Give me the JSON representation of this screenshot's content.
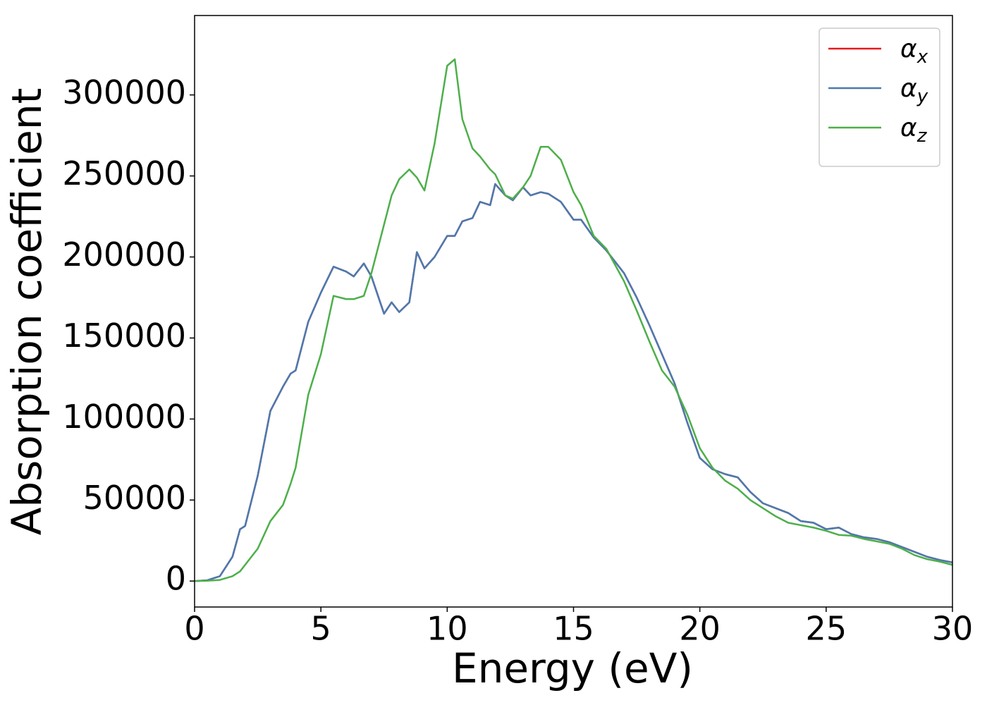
{
  "chart_data": {
    "type": "line",
    "xlabel": "Energy (eV)",
    "ylabel": "Absorption coefficient",
    "x": [
      0,
      0.5,
      1,
      1.5,
      1.8,
      2,
      2.5,
      3,
      3.5,
      3.8,
      4,
      4.5,
      5,
      5.5,
      6,
      6.3,
      6.7,
      7,
      7.5,
      7.8,
      8.1,
      8.5,
      8.8,
      9.1,
      9.5,
      10,
      10.3,
      10.6,
      11,
      11.3,
      11.7,
      11.9,
      12.3,
      12.6,
      13,
      13.3,
      13.7,
      14,
      14.5,
      15,
      15.3,
      15.8,
      16.3,
      17,
      17.5,
      18,
      18.5,
      19,
      19.5,
      20,
      20.5,
      21,
      21.5,
      22,
      22.5,
      23,
      23.5,
      24,
      24.5,
      25,
      25.5,
      26,
      26.5,
      27,
      27.5,
      28,
      28.5,
      29,
      29.5,
      30
    ],
    "series": [
      {
        "name": "αx",
        "color": "#e41a1c",
        "values": [
          0,
          500,
          3000,
          15000,
          32000,
          34000,
          65000,
          105000,
          120000,
          128000,
          130000,
          160000,
          178000,
          194000,
          191000,
          188000,
          196000,
          188000,
          165000,
          172000,
          166000,
          172000,
          203000,
          193000,
          200000,
          213000,
          213000,
          222000,
          224000,
          234000,
          232000,
          245000,
          238000,
          235000,
          243000,
          238000,
          240000,
          239000,
          234000,
          223000,
          223000,
          212000,
          204000,
          190000,
          175000,
          158000,
          140000,
          122000,
          98000,
          76000,
          69000,
          66000,
          64000,
          55000,
          48000,
          45000,
          42000,
          37000,
          36000,
          32000,
          33000,
          29000,
          27000,
          26000,
          24000,
          21000,
          18000,
          15000,
          13000,
          11500
        ]
      },
      {
        "name": "αy",
        "color": "#4a7ab0",
        "values": [
          0,
          500,
          3000,
          15000,
          32000,
          34000,
          65000,
          105000,
          120000,
          128000,
          130000,
          160000,
          178000,
          194000,
          191000,
          188000,
          196000,
          188000,
          165000,
          172000,
          166000,
          172000,
          203000,
          193000,
          200000,
          213000,
          213000,
          222000,
          224000,
          234000,
          232000,
          245000,
          238000,
          235000,
          243000,
          238000,
          240000,
          239000,
          234000,
          223000,
          223000,
          212000,
          204000,
          190000,
          175000,
          158000,
          140000,
          122000,
          98000,
          76000,
          69000,
          66000,
          64000,
          55000,
          48000,
          45000,
          42000,
          37000,
          36000,
          32000,
          33000,
          29000,
          27000,
          26000,
          24000,
          21000,
          18000,
          15000,
          13000,
          11500
        ]
      },
      {
        "name": "αz",
        "color": "#4daf4a",
        "values": [
          0,
          200,
          700,
          3000,
          6000,
          10000,
          20000,
          37000,
          47000,
          60000,
          70000,
          115000,
          140000,
          176000,
          174000,
          174000,
          176000,
          190000,
          220000,
          238000,
          248000,
          254000,
          249000,
          241000,
          270000,
          318000,
          322000,
          285000,
          267000,
          262000,
          254000,
          251000,
          238000,
          236000,
          243000,
          250000,
          268000,
          268000,
          260000,
          240000,
          232000,
          213000,
          205000,
          185000,
          167000,
          148000,
          130000,
          120000,
          103000,
          82000,
          70000,
          62000,
          57000,
          50000,
          45000,
          40000,
          36000,
          34500,
          33000,
          31000,
          28500,
          28000,
          26000,
          24500,
          23000,
          20000,
          16000,
          13500,
          12000,
          10000
        ]
      }
    ],
    "xlim": [
      0,
      30
    ],
    "xticks": [
      0,
      5,
      10,
      15,
      20,
      25,
      30
    ],
    "ylim": [
      -16000,
      349000
    ],
    "yticks": [
      0,
      50000,
      100000,
      150000,
      200000,
      250000,
      300000
    ],
    "grid": false,
    "legend": "upper right"
  }
}
